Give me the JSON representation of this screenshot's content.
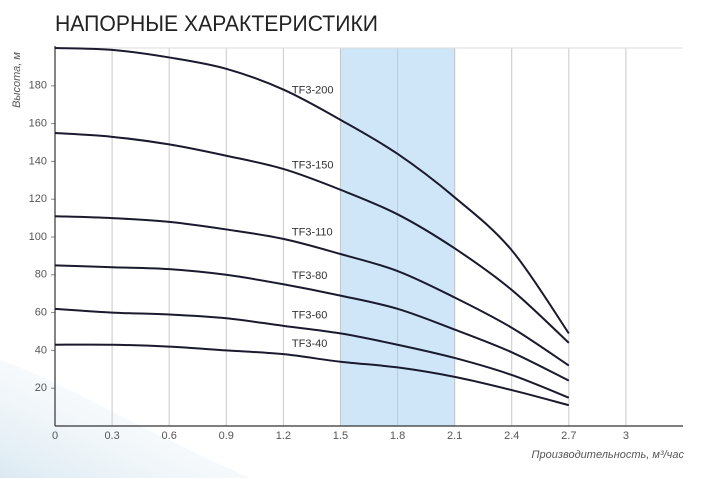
{
  "chart_data": {
    "type": "line",
    "title": "НАПОРНЫЕ ХАРАКТЕРИСТИКИ",
    "x_label": "Производительность, м³/час",
    "y_label": "Высота, м",
    "x": [
      0,
      0.3,
      0.6,
      0.9,
      1.2,
      1.5,
      1.8,
      2.1,
      2.4,
      2.7
    ],
    "series": [
      {
        "name": "TF3-200",
        "color": "#1a1a2e",
        "values": [
          200,
          199,
          195,
          189,
          178,
          162,
          144,
          121,
          93,
          49
        ]
      },
      {
        "name": "TF3-150",
        "color": "#1a1a2e",
        "values": [
          155,
          153,
          149,
          143,
          136,
          125,
          112,
          94,
          72,
          44
        ]
      },
      {
        "name": "TF3-110",
        "color": "#1a1a2e",
        "values": [
          111,
          110,
          108,
          104,
          99,
          91,
          82,
          68,
          52,
          32
        ]
      },
      {
        "name": "TF3-80",
        "color": "#1a1a2e",
        "values": [
          85,
          84,
          83,
          80,
          75,
          69,
          62,
          51,
          39,
          24
        ]
      },
      {
        "name": "TF3-60",
        "color": "#1a1a2e",
        "values": [
          62,
          60,
          59,
          57,
          53,
          49,
          43,
          36,
          27,
          15
        ]
      },
      {
        "name": "TF3-40",
        "color": "#1a1a2e",
        "values": [
          43,
          43,
          42,
          40,
          38,
          34,
          31,
          26,
          19,
          11
        ]
      }
    ],
    "xlim": [
      0,
      3.3
    ],
    "ylim": [
      0,
      200
    ],
    "xticks": [
      0,
      0.3,
      0.6,
      0.9,
      1.2,
      1.5,
      1.8,
      2.1,
      2.4,
      2.7,
      3
    ],
    "yticks": [
      20,
      40,
      60,
      80,
      100,
      120,
      140,
      160,
      180
    ],
    "highlight": [
      1.5,
      2.1
    ],
    "highlight_color": "#cfe6f8",
    "grid": true
  }
}
